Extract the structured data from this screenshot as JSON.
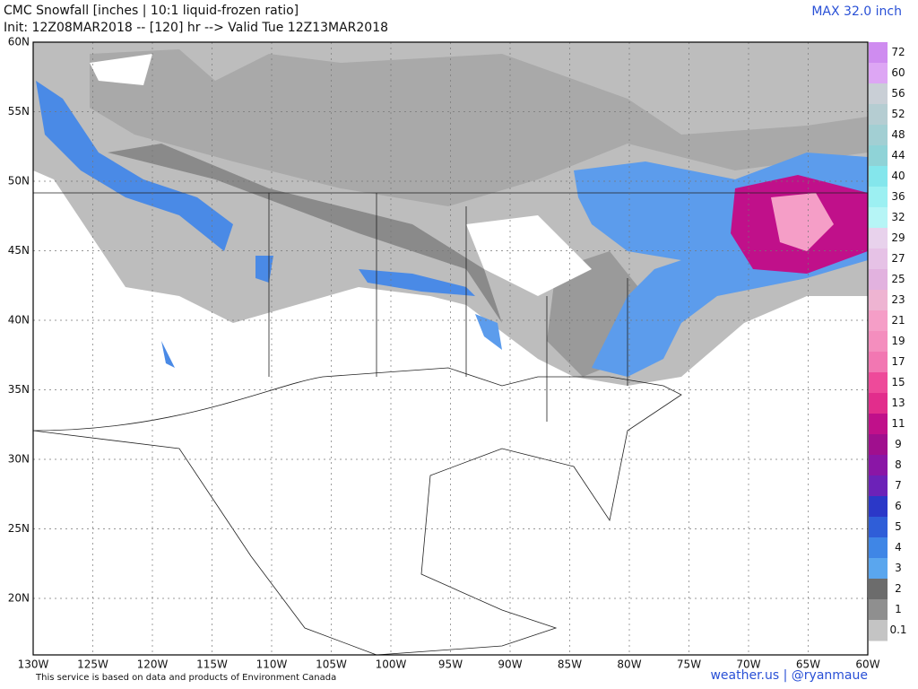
{
  "header": {
    "title": "CMC Snowfall [inches | 10:1 liquid-frozen ratio]",
    "subtitle": "Init: 12Z08MAR2018 -- [120] hr --> Valid Tue 12Z13MAR2018",
    "max": "MAX 32.0 inch"
  },
  "map": {
    "lat_labels": [
      "60N",
      "55N",
      "50N",
      "45N",
      "40N",
      "35N",
      "30N",
      "25N",
      "20N"
    ],
    "lon_labels": [
      "130W",
      "125W",
      "120W",
      "115W",
      "110W",
      "105W",
      "100W",
      "95W",
      "90W",
      "85W",
      "80W",
      "75W",
      "70W",
      "65W",
      "60W"
    ]
  },
  "legend": {
    "labels": [
      "72",
      "60",
      "56",
      "52",
      "48",
      "44",
      "40",
      "36",
      "32",
      "29",
      "27",
      "25",
      "23",
      "21",
      "19",
      "17",
      "15",
      "13",
      "11",
      "9",
      "8",
      "7",
      "6",
      "5",
      "4",
      "3",
      "2",
      "1",
      "0.1"
    ],
    "colors": [
      "#cf8cf0",
      "#dda6f4",
      "#c9cfd6",
      "#b5cdd2",
      "#a2cfd3",
      "#8fd3d7",
      "#84e6ec",
      "#9cf0f2",
      "#b6f5f6",
      "#e8d2ec",
      "#e6c2e6",
      "#e2b2df",
      "#eeb4d2",
      "#f59ec7",
      "#f48ebe",
      "#f277b2",
      "#ee4a9a",
      "#e22d8c",
      "#c0108a",
      "#a00f8e",
      "#8a16a6",
      "#6c22b8",
      "#2b38c8",
      "#2f5ed8",
      "#3f86e6",
      "#5aa6ee",
      "#6c6c6c",
      "#8f8f8f",
      "#c4c4c4"
    ]
  },
  "footer": {
    "source": "This service is based on data and products of Environment Canada",
    "credit": "weather.us | @ryanmaue"
  }
}
